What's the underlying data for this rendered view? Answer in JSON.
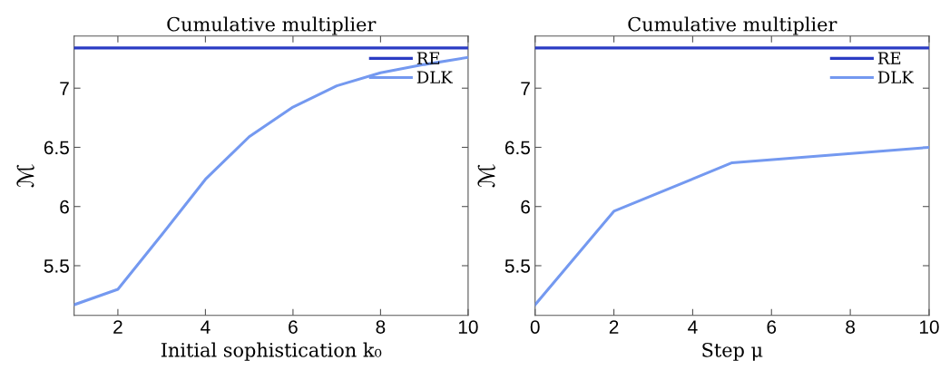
{
  "chart_data": [
    {
      "type": "line",
      "title": "Cumulative multiplier",
      "xlabel": "Initial sophistication k₀",
      "ylabel": "ℳ",
      "xlim": [
        1,
        10
      ],
      "xticks": [
        2,
        4,
        6,
        8,
        10
      ],
      "ylim": [
        5.08,
        7.44
      ],
      "yticks": [
        5.5,
        6,
        6.5,
        7
      ],
      "legend": "top right",
      "grid": false,
      "series": [
        {
          "name": "RE",
          "color": "#2b3cc4",
          "x": [
            1,
            10
          ],
          "values": [
            7.34,
            7.34
          ]
        },
        {
          "name": "DLK",
          "color": "#7499f0",
          "x": [
            1,
            2,
            3,
            4,
            5,
            6,
            7,
            8,
            9,
            10
          ],
          "values": [
            5.17,
            5.3,
            5.76,
            6.23,
            6.59,
            6.84,
            7.02,
            7.13,
            7.2,
            7.26
          ]
        }
      ]
    },
    {
      "type": "line",
      "title": "Cumulative multiplier",
      "xlabel": "Step μ",
      "ylabel": "ℳ",
      "xlim": [
        0,
        10
      ],
      "xticks": [
        0,
        2,
        4,
        6,
        8,
        10
      ],
      "ylim": [
        5.08,
        7.44
      ],
      "yticks": [
        5.5,
        6,
        6.5,
        7
      ],
      "legend": "top right",
      "grid": false,
      "series": [
        {
          "name": "RE",
          "color": "#2b3cc4",
          "x": [
            0,
            10
          ],
          "values": [
            7.34,
            7.34
          ]
        },
        {
          "name": "DLK",
          "color": "#7499f0",
          "x": [
            0,
            2,
            5,
            10
          ],
          "values": [
            5.17,
            5.96,
            6.37,
            6.5
          ]
        }
      ]
    }
  ]
}
